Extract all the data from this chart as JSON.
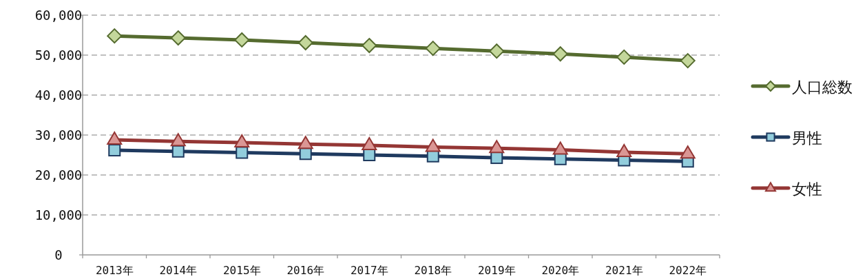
{
  "chart_data": {
    "type": "line",
    "categories": [
      "2013年",
      "2014年",
      "2015年",
      "2016年",
      "2017年",
      "2018年",
      "2019年",
      "2020年",
      "2021年",
      "2022年"
    ],
    "series": [
      {
        "name": "人口総数",
        "color": "#556b2f",
        "marker": "diamond",
        "values": [
          54800,
          54300,
          53800,
          53100,
          52400,
          51700,
          51000,
          50300,
          49500,
          48600
        ]
      },
      {
        "name": "男性",
        "color": "#1f3a5f",
        "marker": "square",
        "values": [
          26200,
          25900,
          25600,
          25300,
          25000,
          24700,
          24300,
          24000,
          23700,
          23400
        ]
      },
      {
        "name": "女性",
        "color": "#943634",
        "marker": "triangle",
        "values": [
          28800,
          28400,
          28100,
          27700,
          27400,
          27000,
          26700,
          26300,
          25700,
          25300
        ]
      }
    ],
    "ylim": [
      0,
      60000
    ],
    "yticks": [
      {
        "value": 0,
        "label": "0"
      },
      {
        "value": 10000,
        "label": "10,000"
      },
      {
        "value": 20000,
        "label": "20,000"
      },
      {
        "value": 30000,
        "label": "30,000"
      },
      {
        "value": 40000,
        "label": "40,000"
      },
      {
        "value": 50000,
        "label": "50,000"
      },
      {
        "value": 60000,
        "label": "60,000"
      }
    ],
    "grid": "y",
    "legend": "right",
    "line_style": "solid"
  }
}
